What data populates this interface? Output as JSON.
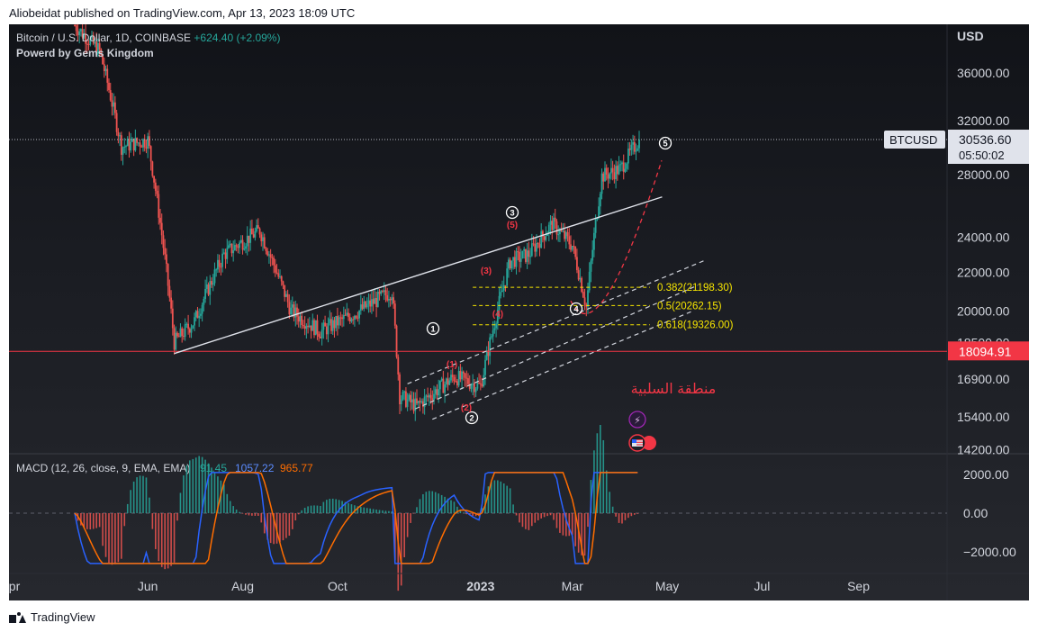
{
  "header": {
    "publisher_line": "Aliobeidat published on TradingView.com, Apr 13, 2023 18:09 UTC"
  },
  "legend": {
    "symbol": "Bitcoin / U.S. Dollar, 1D, COINBASE",
    "change": "+624.40 (+2.09%)",
    "subtitle": "Powerd by Gems Kingdom"
  },
  "currency": "USD",
  "price_axis_ticks": [
    "36000.00",
    "32000.00",
    "28000.00",
    "24000.00",
    "22000.00",
    "20000.00",
    "18500.00",
    "16900.00",
    "15400.00",
    "14200.00"
  ],
  "last_price": {
    "ticker": "BTCUSD",
    "price": "30536.60",
    "countdown": "05:50:02"
  },
  "horizontal_level": "18094.91",
  "fib_levels": [
    "0.382(21198.30)",
    "0.5(20262.15)",
    "0.618(19326.00)"
  ],
  "wave_labels_main": [
    "1",
    "2",
    "3",
    "4",
    "5"
  ],
  "wave_labels_sub": [
    "(1)",
    "(2)",
    "(3)",
    "(4)",
    "(5)"
  ],
  "annotation_arabic": "منطقة السلبية",
  "macd": {
    "label": "MACD (12, 26, close, 9, EMA, EMA)",
    "hist": "91.45",
    "macd": "1057.22",
    "signal": "965.77",
    "ticks": [
      "2000.00",
      "0.00",
      "−2000.00"
    ]
  },
  "time_axis": [
    "pr",
    "Jun",
    "Aug",
    "Oct",
    "2023",
    "Mar",
    "May",
    "Jul",
    "Sep"
  ],
  "colors": {
    "up": "#26a69a",
    "down": "#ef5350",
    "level_red": "#f23645",
    "fib_yellow": "#f7e600",
    "macd_blue": "#2962ff",
    "signal_orange": "#ff6d00"
  },
  "footer": {
    "brand": "TradingView"
  },
  "chart_data": {
    "type": "line",
    "title": "Bitcoin / U.S. Dollar, 1D, COINBASE",
    "x": [
      "2022-04-15",
      "2022-05-01",
      "2022-05-15",
      "2022-06-01",
      "2022-06-18",
      "2022-07-01",
      "2022-07-20",
      "2022-08-12",
      "2022-09-01",
      "2022-09-20",
      "2022-10-15",
      "2022-11-05",
      "2022-11-10",
      "2022-11-21",
      "2022-12-15",
      "2023-01-01",
      "2023-01-20",
      "2023-02-01",
      "2023-02-16",
      "2023-03-01",
      "2023-03-10",
      "2023-03-20",
      "2023-04-01",
      "2023-04-13"
    ],
    "series": [
      {
        "name": "BTCUSD",
        "values": [
          40500,
          38000,
          30000,
          30500,
          18500,
          19500,
          23000,
          24400,
          20000,
          19000,
          20000,
          21000,
          16200,
          15800,
          17000,
          16600,
          22600,
          23000,
          24800,
          23500,
          20200,
          27900,
          28400,
          30536.6
        ]
      }
    ],
    "ylim": [
      14000,
      38500
    ],
    "last_price": 30536.6,
    "horizontal_level": 18094.91,
    "fib_levels": [
      21198.3,
      20262.15,
      19326.0
    ]
  }
}
